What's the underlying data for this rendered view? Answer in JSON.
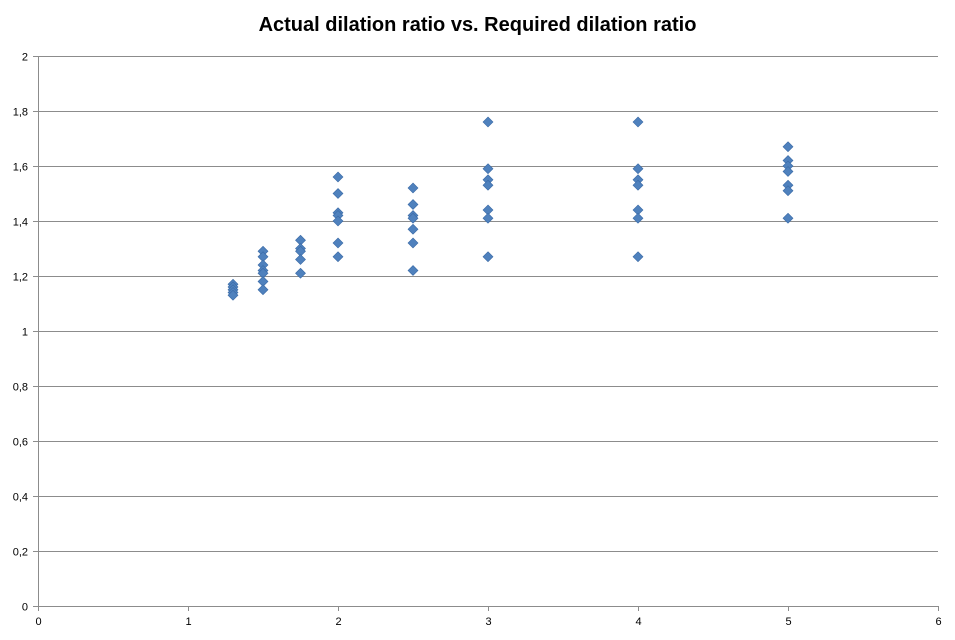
{
  "chart_data": {
    "type": "scatter",
    "title": "Actual dilation ratio vs. Required dilation ratio",
    "xlabel": "",
    "ylabel": "",
    "xlim": [
      0,
      6
    ],
    "ylim": [
      0,
      2
    ],
    "x_ticks": [
      {
        "value": 0,
        "label": "0"
      },
      {
        "value": 1,
        "label": "1"
      },
      {
        "value": 2,
        "label": "2"
      },
      {
        "value": 3,
        "label": "3"
      },
      {
        "value": 4,
        "label": "4"
      },
      {
        "value": 5,
        "label": "5"
      },
      {
        "value": 6,
        "label": "6"
      }
    ],
    "y_ticks": [
      {
        "value": 0,
        "label": "0"
      },
      {
        "value": 0.2,
        "label": "0,2"
      },
      {
        "value": 0.4,
        "label": "0,4"
      },
      {
        "value": 0.6,
        "label": "0,6"
      },
      {
        "value": 0.8,
        "label": "0,8"
      },
      {
        "value": 1,
        "label": "1"
      },
      {
        "value": 1.2,
        "label": "1,2"
      },
      {
        "value": 1.4,
        "label": "1,4"
      },
      {
        "value": 1.6,
        "label": "1,6"
      },
      {
        "value": 1.8,
        "label": "1,8"
      },
      {
        "value": 2,
        "label": "2"
      }
    ],
    "grid": {
      "horizontal": true,
      "vertical": false
    },
    "legend": "none",
    "marker": "diamond",
    "series": [
      {
        "color": "#4F81BD",
        "points": [
          {
            "x": 1.3,
            "y": 1.17
          },
          {
            "x": 1.3,
            "y": 1.16
          },
          {
            "x": 1.3,
            "y": 1.15
          },
          {
            "x": 1.3,
            "y": 1.14
          },
          {
            "x": 1.3,
            "y": 1.13
          },
          {
            "x": 1.5,
            "y": 1.29
          },
          {
            "x": 1.5,
            "y": 1.27
          },
          {
            "x": 1.5,
            "y": 1.24
          },
          {
            "x": 1.5,
            "y": 1.22
          },
          {
            "x": 1.5,
            "y": 1.21
          },
          {
            "x": 1.5,
            "y": 1.18
          },
          {
            "x": 1.5,
            "y": 1.15
          },
          {
            "x": 1.75,
            "y": 1.33
          },
          {
            "x": 1.75,
            "y": 1.3
          },
          {
            "x": 1.75,
            "y": 1.29
          },
          {
            "x": 1.75,
            "y": 1.26
          },
          {
            "x": 1.75,
            "y": 1.21
          },
          {
            "x": 2,
            "y": 1.56
          },
          {
            "x": 2,
            "y": 1.5
          },
          {
            "x": 2,
            "y": 1.43
          },
          {
            "x": 2,
            "y": 1.42
          },
          {
            "x": 2,
            "y": 1.4
          },
          {
            "x": 2,
            "y": 1.32
          },
          {
            "x": 2,
            "y": 1.27
          },
          {
            "x": 2.5,
            "y": 1.52
          },
          {
            "x": 2.5,
            "y": 1.46
          },
          {
            "x": 2.5,
            "y": 1.42
          },
          {
            "x": 2.5,
            "y": 1.41
          },
          {
            "x": 2.5,
            "y": 1.37
          },
          {
            "x": 2.5,
            "y": 1.32
          },
          {
            "x": 2.5,
            "y": 1.22
          },
          {
            "x": 3,
            "y": 1.76
          },
          {
            "x": 3,
            "y": 1.59
          },
          {
            "x": 3,
            "y": 1.55
          },
          {
            "x": 3,
            "y": 1.53
          },
          {
            "x": 3,
            "y": 1.44
          },
          {
            "x": 3,
            "y": 1.41
          },
          {
            "x": 3,
            "y": 1.27
          },
          {
            "x": 4,
            "y": 1.76
          },
          {
            "x": 4,
            "y": 1.59
          },
          {
            "x": 4,
            "y": 1.55
          },
          {
            "x": 4,
            "y": 1.53
          },
          {
            "x": 4,
            "y": 1.44
          },
          {
            "x": 4,
            "y": 1.41
          },
          {
            "x": 4,
            "y": 1.27
          },
          {
            "x": 5,
            "y": 1.67
          },
          {
            "x": 5,
            "y": 1.62
          },
          {
            "x": 5,
            "y": 1.6
          },
          {
            "x": 5,
            "y": 1.58
          },
          {
            "x": 5,
            "y": 1.53
          },
          {
            "x": 5,
            "y": 1.51
          },
          {
            "x": 5,
            "y": 1.41
          }
        ]
      }
    ]
  }
}
